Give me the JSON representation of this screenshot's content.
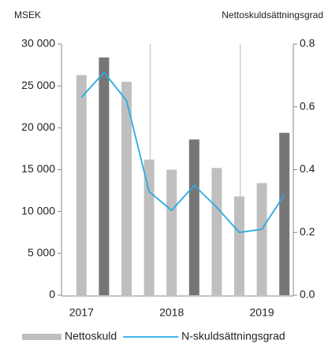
{
  "chart_data": {
    "type": "bar_line",
    "y_label": "MSEK",
    "y2_label": "Nettoskuldsättningsgrad",
    "categories": [
      "2017",
      null,
      null,
      null,
      "2018",
      null,
      null,
      null,
      "2019",
      null
    ],
    "series": [
      {
        "name": "Nettoskuld",
        "type": "bar",
        "color": "#bfbfbf",
        "colors": [
          "#bfbfbf",
          "#767676",
          "#bfbfbf",
          "#bfbfbf",
          "#bfbfbf",
          "#767676",
          "#bfbfbf",
          "#bfbfbf",
          "#bfbfbf",
          "#767676"
        ],
        "values": [
          26300,
          28400,
          25500,
          16200,
          15000,
          18600,
          15200,
          11800,
          13400,
          19400
        ]
      },
      {
        "name": "N-skuldsättningsgrad",
        "type": "line",
        "axis": "y2",
        "color": "#29abe2",
        "values": [
          0.63,
          0.71,
          0.62,
          0.33,
          0.27,
          0.35,
          0.28,
          0.2,
          0.21,
          0.32
        ]
      }
    ],
    "ylim": [
      0,
      30000
    ],
    "yticks": [
      0,
      {
        "value": 5000,
        "label": "5 000"
      },
      {
        "value": 10000,
        "label": "10 000"
      },
      {
        "value": 15000,
        "label": "15 000"
      },
      {
        "value": 20000,
        "label": "20 000"
      },
      {
        "value": 25000,
        "label": "25 000"
      },
      {
        "value": 30000,
        "label": "30 000"
      }
    ],
    "y2lim": [
      0,
      0.8
    ],
    "y2ticks": [
      {
        "value": 0,
        "label": "0.0"
      },
      0.2,
      0.4,
      0.6,
      0.8
    ],
    "legend": "bottom"
  }
}
